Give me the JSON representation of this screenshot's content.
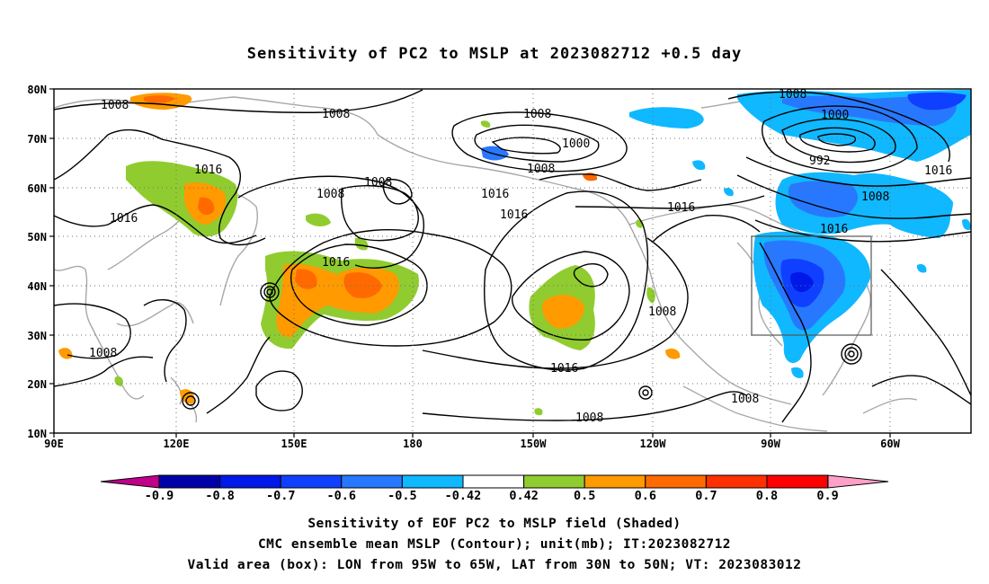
{
  "title": "Sensitivity of PC2 to MSLP at 2023082712 +0.5 day",
  "lat_labels": [
    "80N",
    "70N",
    "60N",
    "50N",
    "40N",
    "30N",
    "20N",
    "10N"
  ],
  "lon_labels": [
    "90E",
    "120E",
    "150E",
    "180",
    "150W",
    "120W",
    "90W",
    "60W"
  ],
  "contour_labels": [
    "1008",
    "1008",
    "1016",
    "1016",
    "1008",
    "1008",
    "1000",
    "1008",
    "1016",
    "1016",
    "1016",
    "1008",
    "1008",
    "1000",
    "992",
    "1008",
    "1016",
    "1016",
    "1008",
    "1008",
    "1016",
    "1008",
    "1008"
  ],
  "colorbar": {
    "labels": [
      "-0.9",
      "-0.8",
      "-0.7",
      "-0.6",
      "-0.5",
      "-0.42",
      "0.42",
      "0.5",
      "0.6",
      "0.7",
      "0.8",
      "0.9"
    ],
    "colors": [
      "#0000a8",
      "#0018e8",
      "#1040ff",
      "#2878ff",
      "#10b8ff",
      "#ffffff",
      "#90cc30",
      "#ff9a00",
      "#ff6a00",
      "#ff3000",
      "#ff0000"
    ],
    "low_extend_color": "#c0008a",
    "high_extend_color": "#ffa0c8"
  },
  "footer": {
    "line1": "Sensitivity of EOF PC2 to MSLP field (Shaded)",
    "line2": "CMC ensemble mean MSLP (Contour); unit(mb); IT:2023082712",
    "line3": "Valid area (box): LON from 95W to 65W, LAT from 30N to 50N; VT: 2023083012"
  }
}
